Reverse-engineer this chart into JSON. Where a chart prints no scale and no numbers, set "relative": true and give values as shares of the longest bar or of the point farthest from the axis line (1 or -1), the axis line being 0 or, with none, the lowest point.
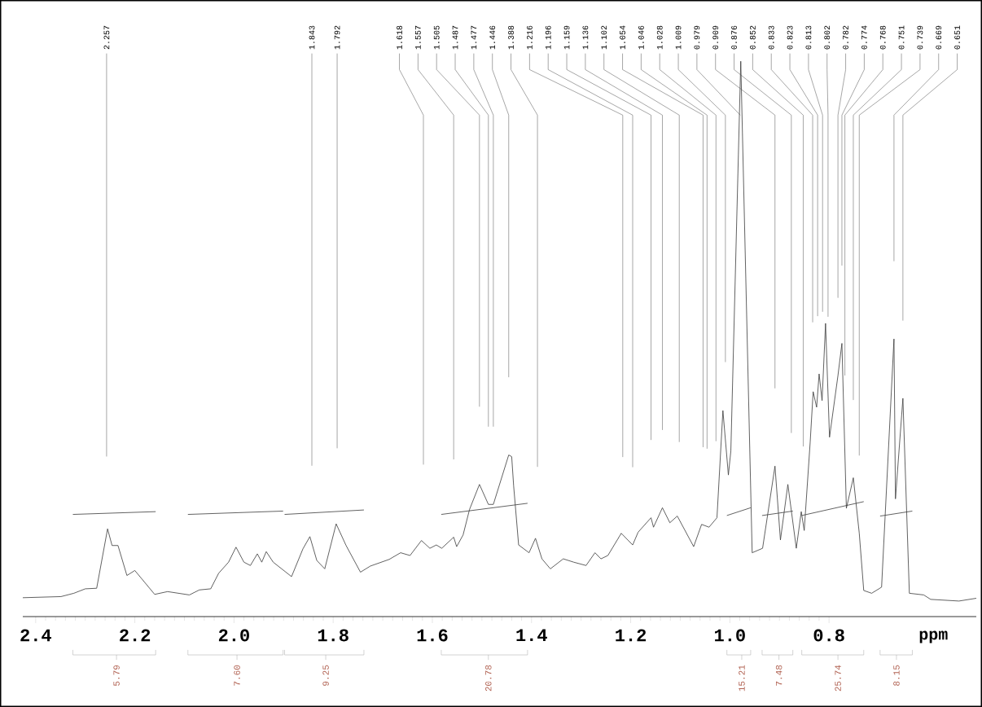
{
  "chart_data": {
    "type": "line",
    "relative": true,
    "xlabel": "ppm",
    "xlim": [
      2.426,
      0.503
    ],
    "xticks": [
      2.4,
      2.2,
      {
        "value": 2.0,
        "label": "2.0"
      },
      1.8,
      1.6,
      1.4,
      1.2,
      {
        "value": 1.0,
        "label": "1.0"
      },
      0.8
    ],
    "series": [
      {
        "color": "#3a3a3a",
        "x": [
          2.426,
          2.349,
          2.323,
          2.3,
          2.277,
          2.255,
          2.246,
          2.234,
          2.216,
          2.2,
          2.16,
          2.134,
          2.09,
          2.07,
          2.047,
          2.031,
          2.011,
          1.996,
          1.98,
          1.967,
          1.953,
          1.944,
          1.935,
          1.921,
          1.884,
          1.861,
          1.847,
          1.833,
          1.817,
          1.794,
          1.774,
          1.745,
          1.725,
          1.687,
          1.664,
          1.645,
          1.622,
          1.605,
          1.592,
          1.581,
          1.557,
          1.551,
          1.538,
          1.525,
          1.505,
          1.487,
          1.477,
          1.446,
          1.44,
          1.436,
          1.426,
          1.405,
          1.392,
          1.379,
          1.362,
          1.336,
          1.315,
          1.29,
          1.272,
          1.26,
          1.246,
          1.219,
          1.196,
          1.185,
          1.159,
          1.154,
          1.136,
          1.121,
          1.106,
          1.073,
          1.057,
          1.042,
          1.026,
          1.014,
          1.003,
          0.998,
          0.978,
          0.955,
          0.934,
          0.909,
          0.898,
          0.883,
          0.866,
          0.856,
          0.85,
          0.838,
          0.832,
          0.825,
          0.82,
          0.814,
          0.807,
          0.799,
          0.782,
          0.774,
          0.765,
          0.751,
          0.739,
          0.73,
          0.714,
          0.694,
          0.669,
          0.666,
          0.651,
          0.638,
          0.609,
          0.595,
          0.538,
          0.503
        ],
        "values": [
          0.034,
          0.036,
          0.042,
          0.05,
          0.051,
          0.158,
          0.128,
          0.128,
          0.074,
          0.083,
          0.04,
          0.045,
          0.039,
          0.048,
          0.05,
          0.078,
          0.098,
          0.125,
          0.098,
          0.092,
          0.113,
          0.098,
          0.117,
          0.098,
          0.072,
          0.122,
          0.144,
          0.101,
          0.086,
          0.167,
          0.128,
          0.08,
          0.091,
          0.103,
          0.115,
          0.11,
          0.137,
          0.123,
          0.129,
          0.123,
          0.143,
          0.126,
          0.147,
          0.193,
          0.238,
          0.202,
          0.202,
          0.291,
          0.288,
          0.235,
          0.129,
          0.115,
          0.141,
          0.104,
          0.086,
          0.104,
          0.098,
          0.092,
          0.115,
          0.104,
          0.11,
          0.15,
          0.129,
          0.152,
          0.178,
          0.161,
          0.196,
          0.169,
          0.181,
          0.126,
          0.166,
          0.161,
          0.178,
          0.371,
          0.255,
          0.298,
          1.0,
          0.115,
          0.123,
          0.271,
          0.138,
          0.238,
          0.123,
          0.189,
          0.155,
          0.314,
          0.405,
          0.377,
          0.437,
          0.389,
          0.528,
          0.323,
          0.434,
          0.492,
          0.195,
          0.25,
          0.15,
          0.047,
          0.042,
          0.053,
          0.5,
          0.212,
          0.393,
          0.042,
          0.039,
          0.031,
          0.028,
          0.033
        ]
      },
      {
        "color": "#3a3a3a",
        "x": [
          2.325,
          2.158
        ],
        "values": [
          0.184,
          0.189
        ]
      },
      {
        "color": "#3a3a3a",
        "x": [
          2.093,
          1.901
        ],
        "values": [
          0.184,
          0.19
        ]
      },
      {
        "color": "#3a3a3a",
        "x": [
          1.898,
          1.738
        ],
        "values": [
          0.184,
          0.192
        ]
      },
      {
        "color": "#3a3a3a",
        "x": [
          1.582,
          1.408
        ],
        "values": [
          0.184,
          0.204
        ]
      },
      {
        "color": "#3a3a3a",
        "x": [
          1.006,
          0.958
        ],
        "values": [
          0.182,
          0.196
        ]
      },
      {
        "color": "#3a3a3a",
        "x": [
          0.935,
          0.873
        ],
        "values": [
          0.182,
          0.19
        ]
      },
      {
        "color": "#3a3a3a",
        "x": [
          0.855,
          0.73
        ],
        "values": [
          0.182,
          0.207
        ]
      },
      {
        "color": "#3a3a3a",
        "x": [
          0.697,
          0.632
        ],
        "values": [
          0.181,
          0.19
        ]
      }
    ],
    "annotations": [
      {
        "text": "2.257",
        "x": 2.257
      },
      {
        "text": "1.843",
        "x": 1.843
      },
      {
        "text": "1.792",
        "x": 1.792
      },
      {
        "text": "1.618",
        "x": 1.618
      },
      {
        "text": "1.557",
        "x": 1.557
      },
      {
        "text": "1.505",
        "x": 1.505
      },
      {
        "text": "1.487",
        "x": 1.487
      },
      {
        "text": "1.477",
        "x": 1.477
      },
      {
        "text": "1.446",
        "x": 1.446
      },
      {
        "text": "1.388",
        "x": 1.388
      },
      {
        "text": "1.216",
        "x": 1.216
      },
      {
        "text": "1.196",
        "x": 1.196
      },
      {
        "text": "1.159",
        "x": 1.159
      },
      {
        "text": "1.136",
        "x": 1.136
      },
      {
        "text": "1.102",
        "x": 1.102
      },
      {
        "text": "1.054",
        "x": 1.054
      },
      {
        "text": "1.046",
        "x": 1.046
      },
      {
        "text": "1.028",
        "x": 1.028
      },
      {
        "text": "1.009",
        "x": 1.009
      },
      {
        "text": "0.979",
        "x": 0.979
      },
      {
        "text": "0.909",
        "x": 0.909
      },
      {
        "text": "0.876",
        "x": 0.876
      },
      {
        "text": "0.852",
        "x": 0.852
      },
      {
        "text": "0.833",
        "x": 0.833
      },
      {
        "text": "0.823",
        "x": 0.823
      },
      {
        "text": "0.813",
        "x": 0.813
      },
      {
        "text": "0.802",
        "x": 0.802
      },
      {
        "text": "0.782",
        "x": 0.782
      },
      {
        "text": "0.774",
        "x": 0.774
      },
      {
        "text": "0.768",
        "x": 0.768
      },
      {
        "text": "0.751",
        "x": 0.751
      },
      {
        "text": "0.739",
        "x": 0.739
      },
      {
        "text": "0.669",
        "x": 0.669
      },
      {
        "text": "0.651",
        "x": 0.651
      },
      {
        "text": "5.79",
        "x": 2.237
      },
      {
        "text": "7.60",
        "x": 1.994
      },
      {
        "text": "9.25",
        "x": 1.815
      },
      {
        "text": "20.78",
        "x": 1.487
      },
      {
        "text": "15.21",
        "x": 0.976
      },
      {
        "text": "7.48",
        "x": 0.901
      },
      {
        "text": "25.74",
        "x": 0.782
      },
      {
        "text": "8.15",
        "x": 0.664
      }
    ]
  }
}
